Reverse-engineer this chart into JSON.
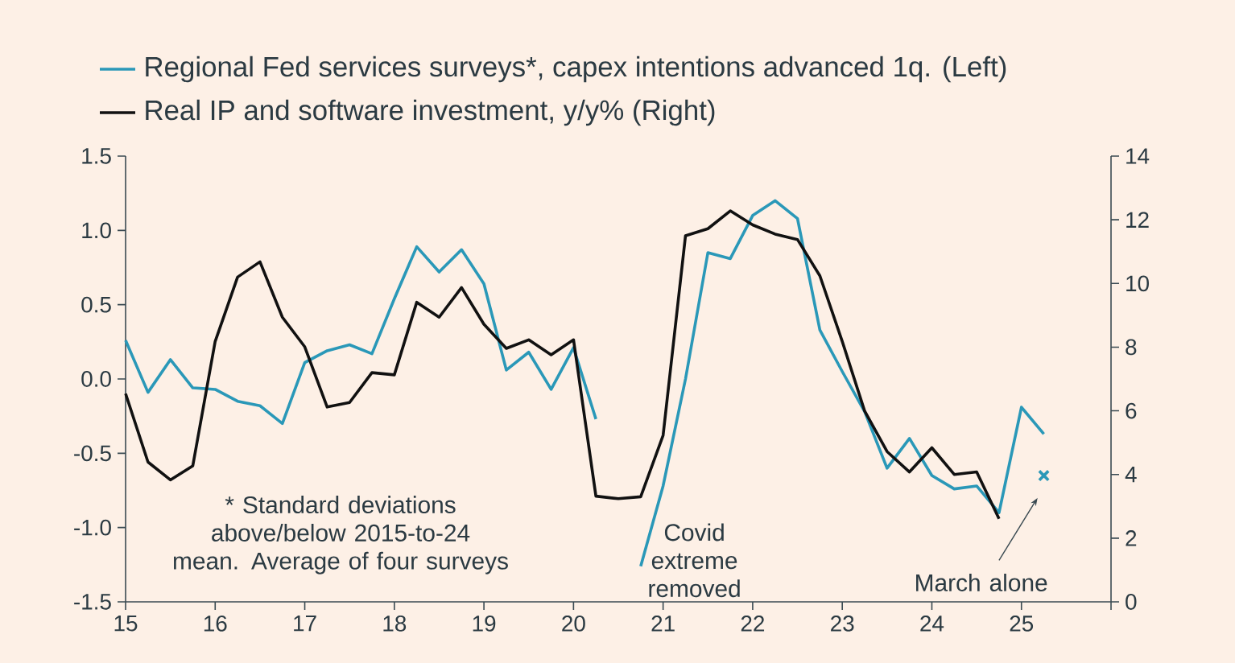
{
  "chart_data": {
    "type": "line",
    "x": [
      15,
      15.25,
      15.5,
      15.75,
      16,
      16.25,
      16.5,
      16.75,
      17,
      17.25,
      17.5,
      17.75,
      18,
      18.25,
      18.5,
      18.75,
      19,
      19.25,
      19.5,
      19.75,
      20,
      20.25,
      20.5,
      20.75,
      21,
      21.25,
      21.5,
      21.75,
      22,
      22.25,
      22.5,
      22.75,
      23,
      23.25,
      23.5,
      23.75,
      24,
      24.25,
      24.5,
      24.75,
      25,
      25.25
    ],
    "series": [
      {
        "name": "Regional Fed services surveys*, capex intentions advanced 1q. (Left)",
        "color": "#2a98b8",
        "values": [
          0.26,
          -0.09,
          0.13,
          -0.06,
          -0.07,
          -0.15,
          -0.18,
          -0.3,
          0.11,
          0.19,
          0.23,
          0.17,
          0.54,
          0.89,
          0.72,
          0.87,
          0.64,
          0.06,
          0.18,
          -0.07,
          0.21,
          -0.27,
          null,
          -1.26,
          -0.72,
          0.0,
          0.85,
          0.81,
          1.1,
          1.2,
          1.08,
          0.33,
          0.05,
          -0.22,
          -0.6,
          -0.4,
          -0.65,
          -0.74,
          -0.72,
          -0.9,
          -0.19,
          -0.37
        ]
      },
      {
        "name": "Real IP and software investment, y/y% (Right)",
        "color": "#111111",
        "axis": "y2",
        "values": [
          6.54,
          4.39,
          3.83,
          4.27,
          8.18,
          10.2,
          10.68,
          8.94,
          8.01,
          6.12,
          6.26,
          7.2,
          7.13,
          9.41,
          8.94,
          9.87,
          8.72,
          7.96,
          8.23,
          7.76,
          8.23,
          3.32,
          3.24,
          3.3,
          5.23,
          11.5,
          11.72,
          12.28,
          11.84,
          11.55,
          11.38,
          10.24,
          8.18,
          5.99,
          4.72,
          4.08,
          4.84,
          4.0,
          4.08,
          2.61,
          null,
          null
        ]
      },
      {
        "type": "scatter",
        "marker": "cross",
        "color": "#2a98b8",
        "x": [
          25.25
        ],
        "values": [
          -0.65
        ]
      }
    ],
    "xlim": [
      15,
      26
    ],
    "xticks": [
      15,
      16,
      17,
      18,
      19,
      20,
      21,
      22,
      23,
      24,
      25,
      {
        "value": 26,
        "label": null
      }
    ],
    "ylim": [
      -1.5,
      1.5
    ],
    "yticks": [
      -1.5,
      {
        "value": -1,
        "label": "-1.0"
      },
      -0.5,
      {
        "value": 0,
        "label": "0.0"
      },
      0.5,
      {
        "value": 1,
        "label": "1.0"
      },
      1.5
    ],
    "y2lim": [
      0,
      14
    ],
    "y2ticks": [
      0,
      2,
      4,
      6,
      8,
      10,
      12,
      14
    ],
    "legend": "top left",
    "marker": "none",
    "line_style": "solid",
    "annotations": [
      "* Standard deviations above/below 2015-to-24 mean. Average of four surveys",
      "Covid extreme removed",
      "March alone"
    ]
  }
}
